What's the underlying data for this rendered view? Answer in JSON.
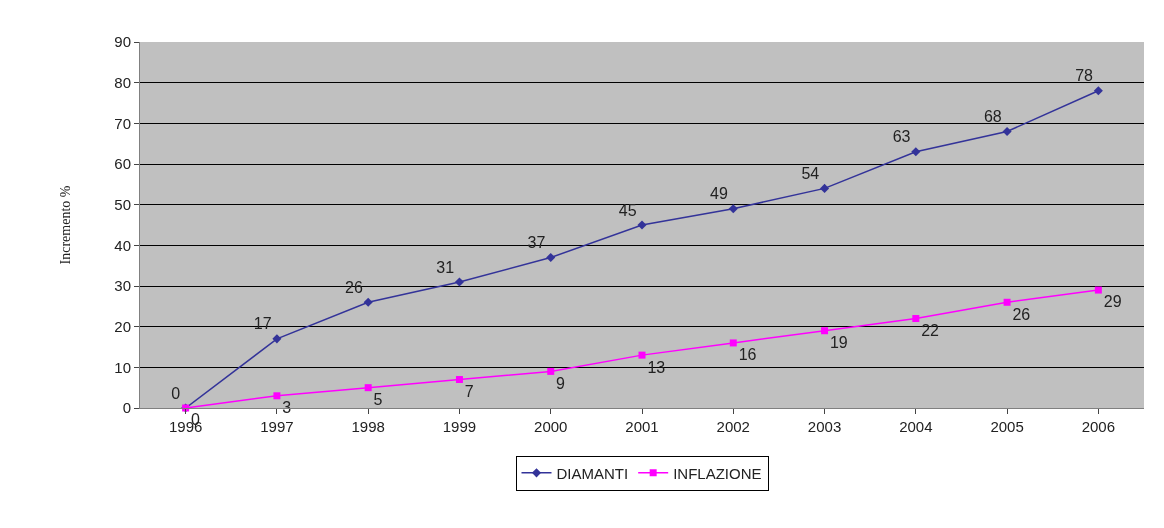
{
  "chart_data": {
    "type": "line",
    "ylabel": "Incremento %",
    "categories": [
      "1996",
      "1997",
      "1998",
      "1999",
      "2000",
      "2001",
      "2002",
      "2003",
      "2004",
      "2005",
      "2006"
    ],
    "series": [
      {
        "name": "DIAMANTI",
        "color": "#333399",
        "marker": "diamond",
        "values": [
          0,
          17,
          26,
          31,
          37,
          45,
          49,
          54,
          63,
          68,
          78
        ]
      },
      {
        "name": "INFLAZIONE",
        "color": "#ff00ff",
        "marker": "square",
        "values": [
          0,
          3,
          5,
          7,
          9,
          13,
          16,
          19,
          22,
          26,
          29
        ]
      }
    ],
    "ylim": [
      0,
      90
    ],
    "yticks": [
      0,
      10,
      20,
      30,
      40,
      50,
      60,
      70,
      80,
      90
    ],
    "grid": "y",
    "legend": "bottom",
    "data_labels": true,
    "line_style": "solid"
  }
}
